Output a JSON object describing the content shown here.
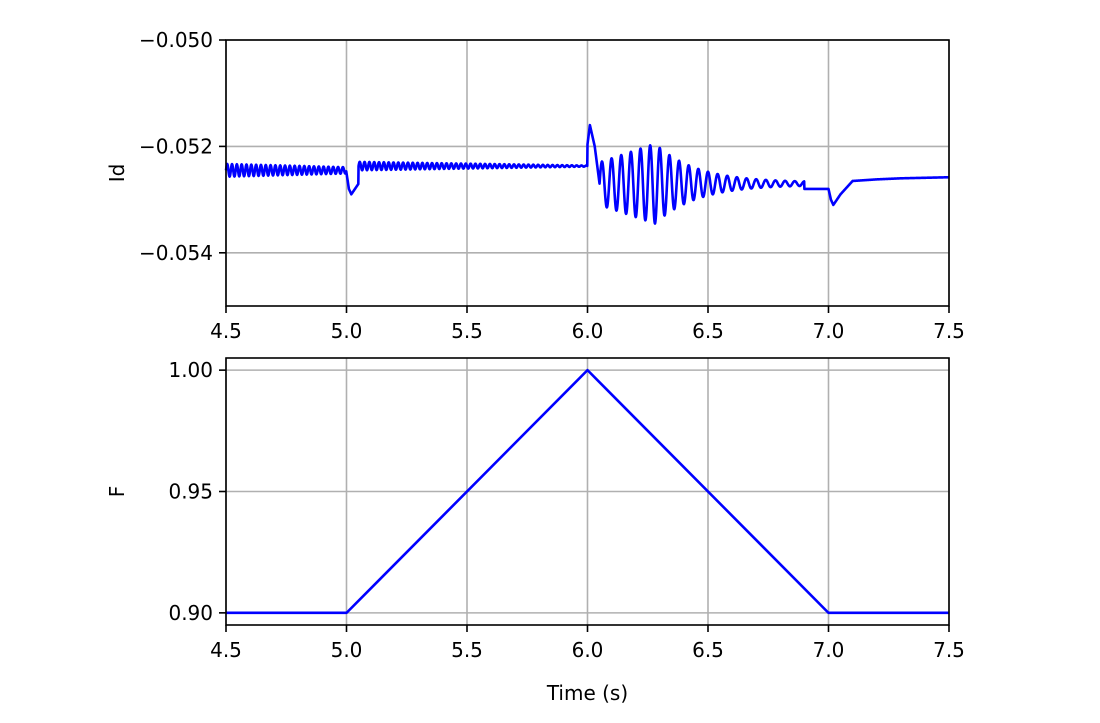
{
  "chart_data": [
    {
      "type": "line",
      "title": "",
      "xlabel": "",
      "ylabel": "Id",
      "xlim": [
        4.5,
        7.5
      ],
      "ylim": [
        -0.055,
        -0.05
      ],
      "xticks": [
        4.5,
        5.0,
        5.5,
        6.0,
        6.5,
        7.0,
        7.5
      ],
      "xtick_labels": [
        "4.5",
        "5.0",
        "5.5",
        "6.0",
        "6.5",
        "7.0",
        "7.5"
      ],
      "yticks": [
        -0.05,
        -0.052,
        -0.054
      ],
      "ytick_labels": [
        "−0.050",
        "−0.052",
        "−0.054"
      ],
      "grid": true,
      "series": [
        {
          "color": "#0000ff",
          "x": [
            4.5,
            4.6,
            4.7,
            4.8,
            4.9,
            5.0,
            5.01,
            5.02,
            5.05,
            5.1,
            5.2,
            5.3,
            5.5,
            5.7,
            5.9,
            5.99,
            6.01,
            6.03,
            6.05,
            6.1,
            6.2,
            6.3,
            6.4,
            6.5,
            6.6,
            6.7,
            6.8,
            6.9,
            7.0,
            7.01,
            7.02,
            7.05,
            7.1,
            7.2,
            7.3,
            7.5
          ],
          "y": [
            -0.0525,
            -0.0524,
            -0.0524,
            -0.0524,
            -0.0525,
            -0.0525,
            -0.0528,
            -0.0529,
            -0.0527,
            -0.05245,
            -0.0524,
            -0.05237,
            -0.05235,
            -0.05233,
            -0.05232,
            -0.05232,
            -0.0516,
            -0.052,
            -0.0527,
            -0.053,
            -0.0533,
            -0.0534,
            -0.0532,
            -0.053,
            -0.0529,
            -0.05285,
            -0.0528,
            -0.0528,
            -0.0528,
            -0.053,
            -0.0531,
            -0.0529,
            -0.05265,
            -0.05262,
            -0.0526,
            -0.05258
          ],
          "oscillations": [
            {
              "x_start": 4.5,
              "x_end": 5.0,
              "period": 0.02,
              "center": -0.05245,
              "amp_start": 0.00012,
              "amp_end": 6e-05
            },
            {
              "x_start": 5.05,
              "x_end": 6.0,
              "period": 0.02,
              "center": -0.05237,
              "amp_start": 8e-05,
              "amp_end": 1e-05
            },
            {
              "x_start": 6.05,
              "x_end": 6.9,
              "period": 0.04,
              "center": -0.0527,
              "amp_start": 0.0004,
              "amp_peak_at": 6.28,
              "amp_peak": 0.00075,
              "amp_end": 2e-05
            }
          ]
        }
      ]
    },
    {
      "type": "line",
      "title": "",
      "xlabel": "Time (s)",
      "ylabel": "F",
      "xlim": [
        4.5,
        7.5
      ],
      "ylim": [
        0.895,
        1.005
      ],
      "xticks": [
        4.5,
        5.0,
        5.5,
        6.0,
        6.5,
        7.0,
        7.5
      ],
      "xtick_labels": [
        "4.5",
        "5.0",
        "5.5",
        "6.0",
        "6.5",
        "7.0",
        "7.5"
      ],
      "yticks": [
        0.9,
        0.95,
        1.0
      ],
      "ytick_labels": [
        "0.90",
        "0.95",
        "1.00"
      ],
      "grid": true,
      "series": [
        {
          "color": "#0000ff",
          "x": [
            4.5,
            5.0,
            6.0,
            7.0,
            7.5
          ],
          "y": [
            0.9,
            0.9,
            1.0,
            0.9,
            0.9
          ]
        }
      ]
    }
  ]
}
